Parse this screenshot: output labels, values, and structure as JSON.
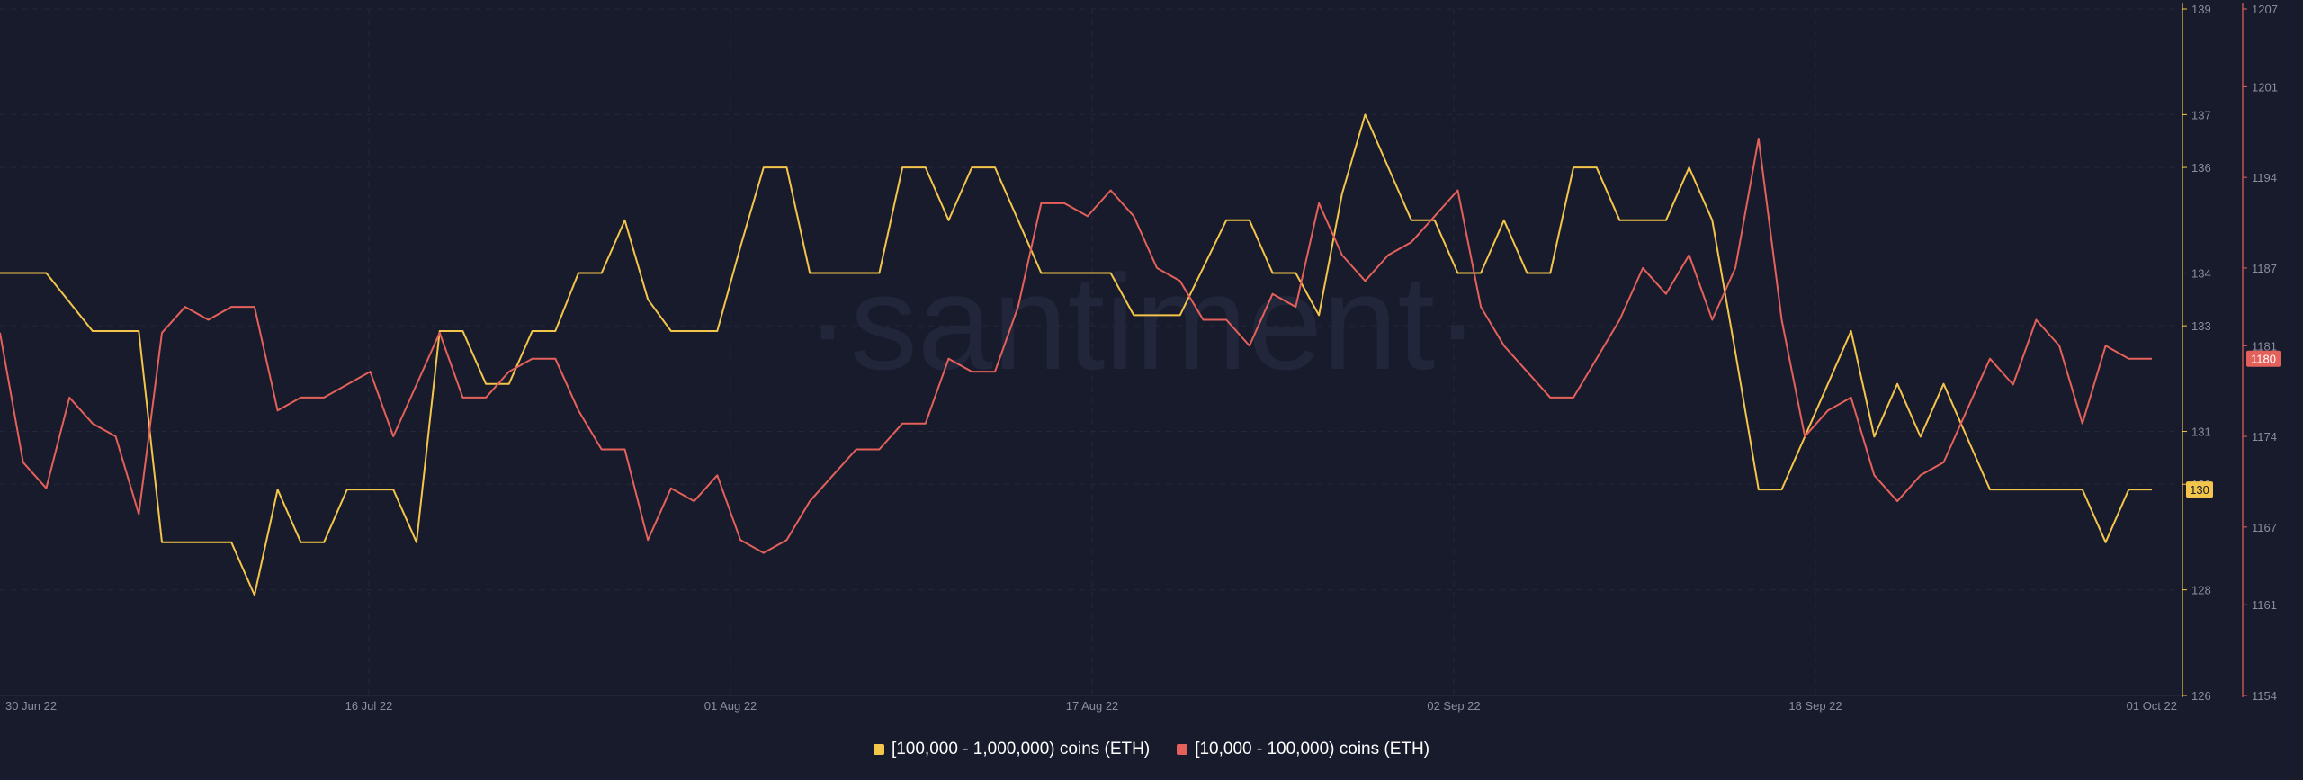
{
  "chart_data": {
    "type": "line",
    "title": "",
    "xlabel": "",
    "x_ticks": [
      "30 Jun 22",
      "16 Jul 22",
      "01 Aug 22",
      "17 Aug 22",
      "02 Sep 22",
      "18 Sep 22",
      "01 Oct 22"
    ],
    "y_left": {
      "ticks": [
        "126",
        "128",
        "130",
        "131",
        "133",
        "134",
        "136",
        "137",
        "139"
      ],
      "range": [
        126,
        139
      ]
    },
    "y_right": {
      "ticks": [
        "1154",
        "1161",
        "1167",
        "1174",
        "1181",
        "1187",
        "1194",
        "1201",
        "1207"
      ],
      "range": [
        1154,
        1207
      ]
    },
    "watermark": "·santiment·",
    "grid": true,
    "legend_position": "bottom-center",
    "series": [
      {
        "name": "[100,000  - 1,000,000) coins (ETH)",
        "axis": "left",
        "color": "#f3c54b",
        "last_value_label": "130",
        "points": [
          [
            0,
            134
          ],
          [
            2,
            134
          ],
          [
            4,
            132.9
          ],
          [
            6,
            132.9
          ],
          [
            7,
            128.9
          ],
          [
            9,
            128.9
          ],
          [
            10,
            128.9
          ],
          [
            11,
            127.9
          ],
          [
            12,
            129.9
          ],
          [
            13,
            128.9
          ],
          [
            14,
            128.9
          ],
          [
            15,
            129.9
          ],
          [
            16,
            129.9
          ],
          [
            17,
            129.9
          ],
          [
            18,
            128.9
          ],
          [
            19,
            132.9
          ],
          [
            20,
            132.9
          ],
          [
            21,
            131.9
          ],
          [
            22,
            131.9
          ],
          [
            23,
            132.9
          ],
          [
            24,
            132.9
          ],
          [
            25,
            134
          ],
          [
            26,
            134
          ],
          [
            27,
            135
          ],
          [
            28,
            133.5
          ],
          [
            29,
            132.9
          ],
          [
            30,
            132.9
          ],
          [
            31,
            132.9
          ],
          [
            32,
            134.5
          ],
          [
            33,
            136
          ],
          [
            34,
            136
          ],
          [
            35,
            134
          ],
          [
            36,
            134
          ],
          [
            37,
            134
          ],
          [
            38,
            134
          ],
          [
            39,
            136
          ],
          [
            40,
            136
          ],
          [
            41,
            135
          ],
          [
            42,
            136
          ],
          [
            43,
            136
          ],
          [
            44,
            135
          ],
          [
            45,
            134
          ],
          [
            46,
            134
          ],
          [
            47,
            134
          ],
          [
            48,
            134
          ],
          [
            49,
            133.2
          ],
          [
            50,
            133.2
          ],
          [
            51,
            133.2
          ],
          [
            52,
            134.1
          ],
          [
            53,
            135
          ],
          [
            54,
            135
          ],
          [
            55,
            134
          ],
          [
            56,
            134
          ],
          [
            57,
            133.2
          ],
          [
            58,
            135.5
          ],
          [
            59,
            137
          ],
          [
            60,
            136
          ],
          [
            61,
            135
          ],
          [
            62,
            135
          ],
          [
            63,
            134
          ],
          [
            64,
            134
          ],
          [
            65,
            135
          ],
          [
            66,
            134
          ],
          [
            67,
            134
          ],
          [
            68,
            136
          ],
          [
            69,
            136
          ],
          [
            70,
            135
          ],
          [
            71,
            135
          ],
          [
            72,
            135
          ],
          [
            73,
            136
          ],
          [
            74,
            135
          ],
          [
            75,
            132.5
          ],
          [
            76,
            129.9
          ],
          [
            77,
            129.9
          ],
          [
            78,
            130.9
          ],
          [
            79,
            131.9
          ],
          [
            80,
            132.9
          ],
          [
            81,
            130.9
          ],
          [
            82,
            131.9
          ],
          [
            83,
            130.9
          ],
          [
            84,
            131.9
          ],
          [
            85,
            130.9
          ],
          [
            86,
            129.9
          ],
          [
            87,
            129.9
          ],
          [
            88,
            129.9
          ],
          [
            89,
            129.9
          ],
          [
            90,
            129.9
          ],
          [
            91,
            128.9
          ],
          [
            92,
            129.9
          ],
          [
            93,
            129.9
          ]
        ]
      },
      {
        "name": "[10,000 - 100,000) coins (ETH)",
        "axis": "right",
        "color": "#e4615b",
        "last_value_label": "1180",
        "points": [
          [
            0,
            1182
          ],
          [
            1,
            1172
          ],
          [
            2,
            1170
          ],
          [
            3,
            1177
          ],
          [
            4,
            1175
          ],
          [
            5,
            1174
          ],
          [
            6,
            1168
          ],
          [
            7,
            1182
          ],
          [
            8,
            1184
          ],
          [
            9,
            1183
          ],
          [
            10,
            1184
          ],
          [
            11,
            1184
          ],
          [
            12,
            1176
          ],
          [
            13,
            1177
          ],
          [
            14,
            1177
          ],
          [
            15,
            1178
          ],
          [
            16,
            1179
          ],
          [
            17,
            1174
          ],
          [
            18,
            1178
          ],
          [
            19,
            1182
          ],
          [
            20,
            1177
          ],
          [
            21,
            1177
          ],
          [
            22,
            1179
          ],
          [
            23,
            1180
          ],
          [
            24,
            1180
          ],
          [
            25,
            1176
          ],
          [
            26,
            1173
          ],
          [
            27,
            1173
          ],
          [
            28,
            1166
          ],
          [
            29,
            1170
          ],
          [
            30,
            1169
          ],
          [
            31,
            1171
          ],
          [
            32,
            1166
          ],
          [
            33,
            1165
          ],
          [
            34,
            1166
          ],
          [
            35,
            1169
          ],
          [
            36,
            1171
          ],
          [
            37,
            1173
          ],
          [
            38,
            1173
          ],
          [
            39,
            1175
          ],
          [
            40,
            1175
          ],
          [
            41,
            1180
          ],
          [
            42,
            1179
          ],
          [
            43,
            1179
          ],
          [
            44,
            1184
          ],
          [
            45,
            1192
          ],
          [
            46,
            1192
          ],
          [
            47,
            1191
          ],
          [
            48,
            1193
          ],
          [
            49,
            1191
          ],
          [
            50,
            1187
          ],
          [
            51,
            1186
          ],
          [
            52,
            1183
          ],
          [
            53,
            1183
          ],
          [
            54,
            1181
          ],
          [
            55,
            1185
          ],
          [
            56,
            1184
          ],
          [
            57,
            1192
          ],
          [
            58,
            1188
          ],
          [
            59,
            1186
          ],
          [
            60,
            1188
          ],
          [
            61,
            1189
          ],
          [
            62,
            1191
          ],
          [
            63,
            1193
          ],
          [
            64,
            1184
          ],
          [
            65,
            1181
          ],
          [
            66,
            1179
          ],
          [
            67,
            1177
          ],
          [
            68,
            1177
          ],
          [
            69,
            1180
          ],
          [
            70,
            1183
          ],
          [
            71,
            1187
          ],
          [
            72,
            1185
          ],
          [
            73,
            1188
          ],
          [
            74,
            1183
          ],
          [
            75,
            1187
          ],
          [
            76,
            1197
          ],
          [
            77,
            1183
          ],
          [
            78,
            1174
          ],
          [
            79,
            1176
          ],
          [
            80,
            1177
          ],
          [
            81,
            1171
          ],
          [
            82,
            1169
          ],
          [
            83,
            1171
          ],
          [
            84,
            1172
          ],
          [
            85,
            1176
          ],
          [
            86,
            1180
          ],
          [
            87,
            1178
          ],
          [
            88,
            1183
          ],
          [
            89,
            1181
          ],
          [
            90,
            1175
          ],
          [
            91,
            1181
          ],
          [
            92,
            1180
          ],
          [
            93,
            1180
          ]
        ]
      }
    ]
  }
}
